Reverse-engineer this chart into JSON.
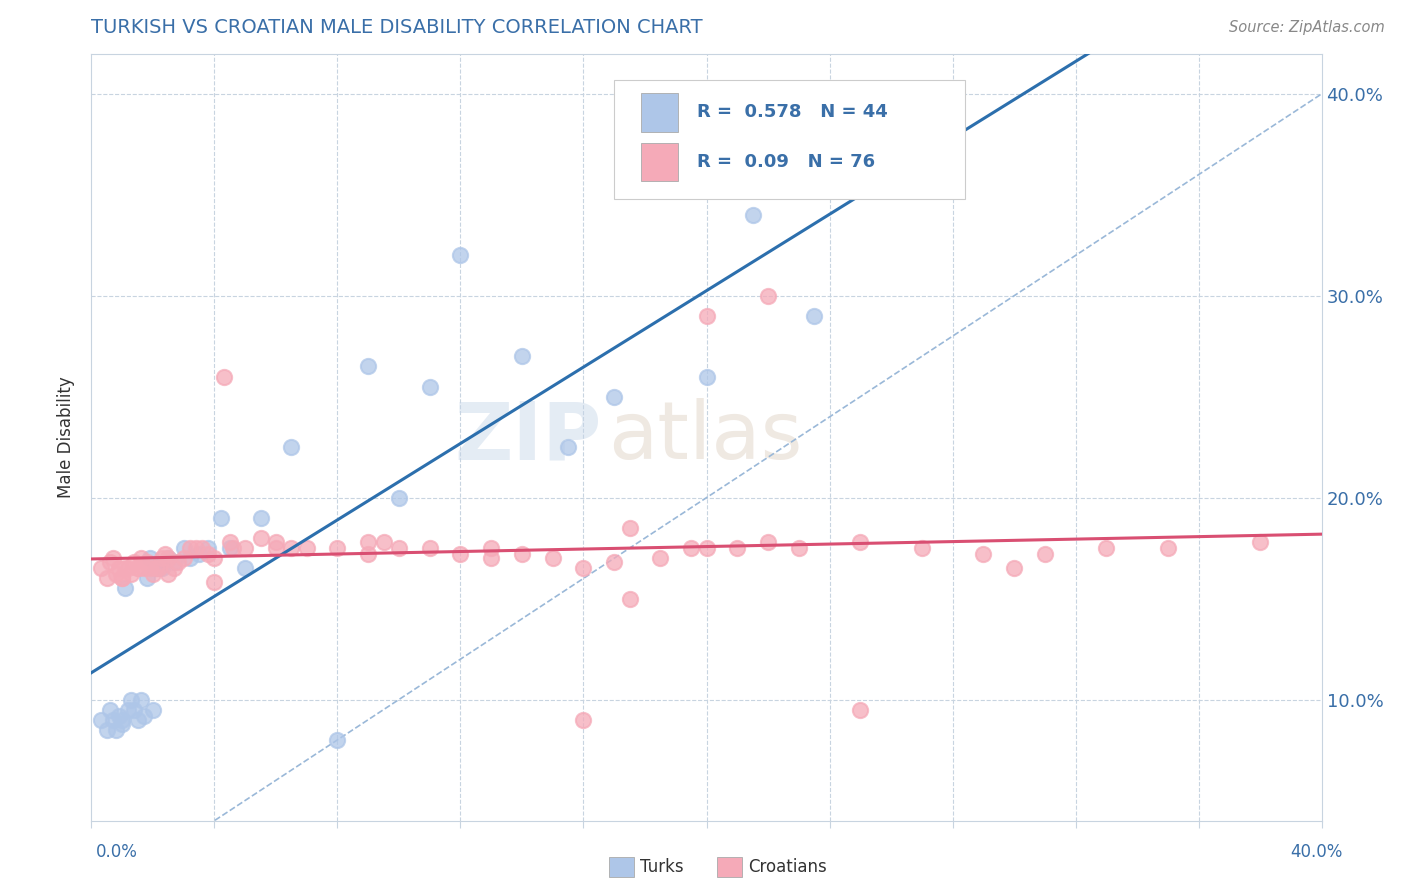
{
  "title": "TURKISH VS CROATIAN MALE DISABILITY CORRELATION CHART",
  "source": "Source: ZipAtlas.com",
  "ylabel": "Male Disability",
  "ytick_vals": [
    0.1,
    0.2,
    0.3,
    0.4
  ],
  "xlim": [
    0.0,
    0.4
  ],
  "ylim": [
    0.04,
    0.42
  ],
  "turkish_R": 0.578,
  "turkish_N": 44,
  "croatian_R": 0.09,
  "croatian_N": 76,
  "turkish_color": "#aec6e8",
  "croatian_color": "#f5aab8",
  "turkish_line_color": "#2c6fad",
  "croatian_line_color": "#d94f72",
  "diagonal_color": "#9ab8d8",
  "title_color": "#3a6fa8",
  "legend_color": "#3a6fa8",
  "turkish_points_x": [
    0.003,
    0.005,
    0.006,
    0.007,
    0.008,
    0.009,
    0.01,
    0.01,
    0.011,
    0.012,
    0.013,
    0.014,
    0.015,
    0.016,
    0.017,
    0.018,
    0.019,
    0.02,
    0.021,
    0.022,
    0.023,
    0.025,
    0.027,
    0.03,
    0.032,
    0.035,
    0.038,
    0.042,
    0.045,
    0.05,
    0.055,
    0.065,
    0.08,
    0.09,
    0.1,
    0.11,
    0.12,
    0.14,
    0.155,
    0.17,
    0.2,
    0.215,
    0.235,
    0.275
  ],
  "turkish_points_y": [
    0.09,
    0.085,
    0.095,
    0.09,
    0.085,
    0.092,
    0.09,
    0.088,
    0.155,
    0.095,
    0.1,
    0.095,
    0.09,
    0.1,
    0.092,
    0.16,
    0.17,
    0.095,
    0.165,
    0.165,
    0.165,
    0.17,
    0.168,
    0.175,
    0.17,
    0.172,
    0.175,
    0.19,
    0.175,
    0.165,
    0.19,
    0.225,
    0.08,
    0.265,
    0.2,
    0.255,
    0.32,
    0.27,
    0.225,
    0.25,
    0.26,
    0.34,
    0.29,
    0.365
  ],
  "croatian_points_x": [
    0.003,
    0.005,
    0.006,
    0.007,
    0.008,
    0.009,
    0.01,
    0.011,
    0.012,
    0.013,
    0.014,
    0.015,
    0.016,
    0.017,
    0.018,
    0.019,
    0.02,
    0.021,
    0.022,
    0.023,
    0.024,
    0.025,
    0.027,
    0.028,
    0.03,
    0.032,
    0.034,
    0.036,
    0.038,
    0.04,
    0.043,
    0.046,
    0.05,
    0.055,
    0.06,
    0.065,
    0.07,
    0.08,
    0.09,
    0.095,
    0.1,
    0.11,
    0.12,
    0.13,
    0.14,
    0.15,
    0.16,
    0.17,
    0.175,
    0.185,
    0.195,
    0.2,
    0.21,
    0.22,
    0.23,
    0.25,
    0.27,
    0.29,
    0.31,
    0.33,
    0.35,
    0.38,
    0.045,
    0.16,
    0.22,
    0.2,
    0.3,
    0.25,
    0.175,
    0.13,
    0.09,
    0.06,
    0.04,
    0.025,
    0.015,
    0.01
  ],
  "croatian_points_y": [
    0.165,
    0.16,
    0.168,
    0.17,
    0.162,
    0.165,
    0.16,
    0.165,
    0.165,
    0.162,
    0.168,
    0.165,
    0.17,
    0.165,
    0.168,
    0.165,
    0.162,
    0.165,
    0.165,
    0.17,
    0.172,
    0.162,
    0.165,
    0.168,
    0.17,
    0.175,
    0.175,
    0.175,
    0.172,
    0.17,
    0.26,
    0.175,
    0.175,
    0.18,
    0.178,
    0.175,
    0.175,
    0.175,
    0.172,
    0.178,
    0.175,
    0.175,
    0.172,
    0.17,
    0.172,
    0.17,
    0.165,
    0.168,
    0.185,
    0.17,
    0.175,
    0.175,
    0.175,
    0.178,
    0.175,
    0.178,
    0.175,
    0.172,
    0.172,
    0.175,
    0.175,
    0.178,
    0.178,
    0.09,
    0.3,
    0.29,
    0.165,
    0.095,
    0.15,
    0.175,
    0.178,
    0.175,
    0.158,
    0.17,
    0.165,
    0.16
  ]
}
